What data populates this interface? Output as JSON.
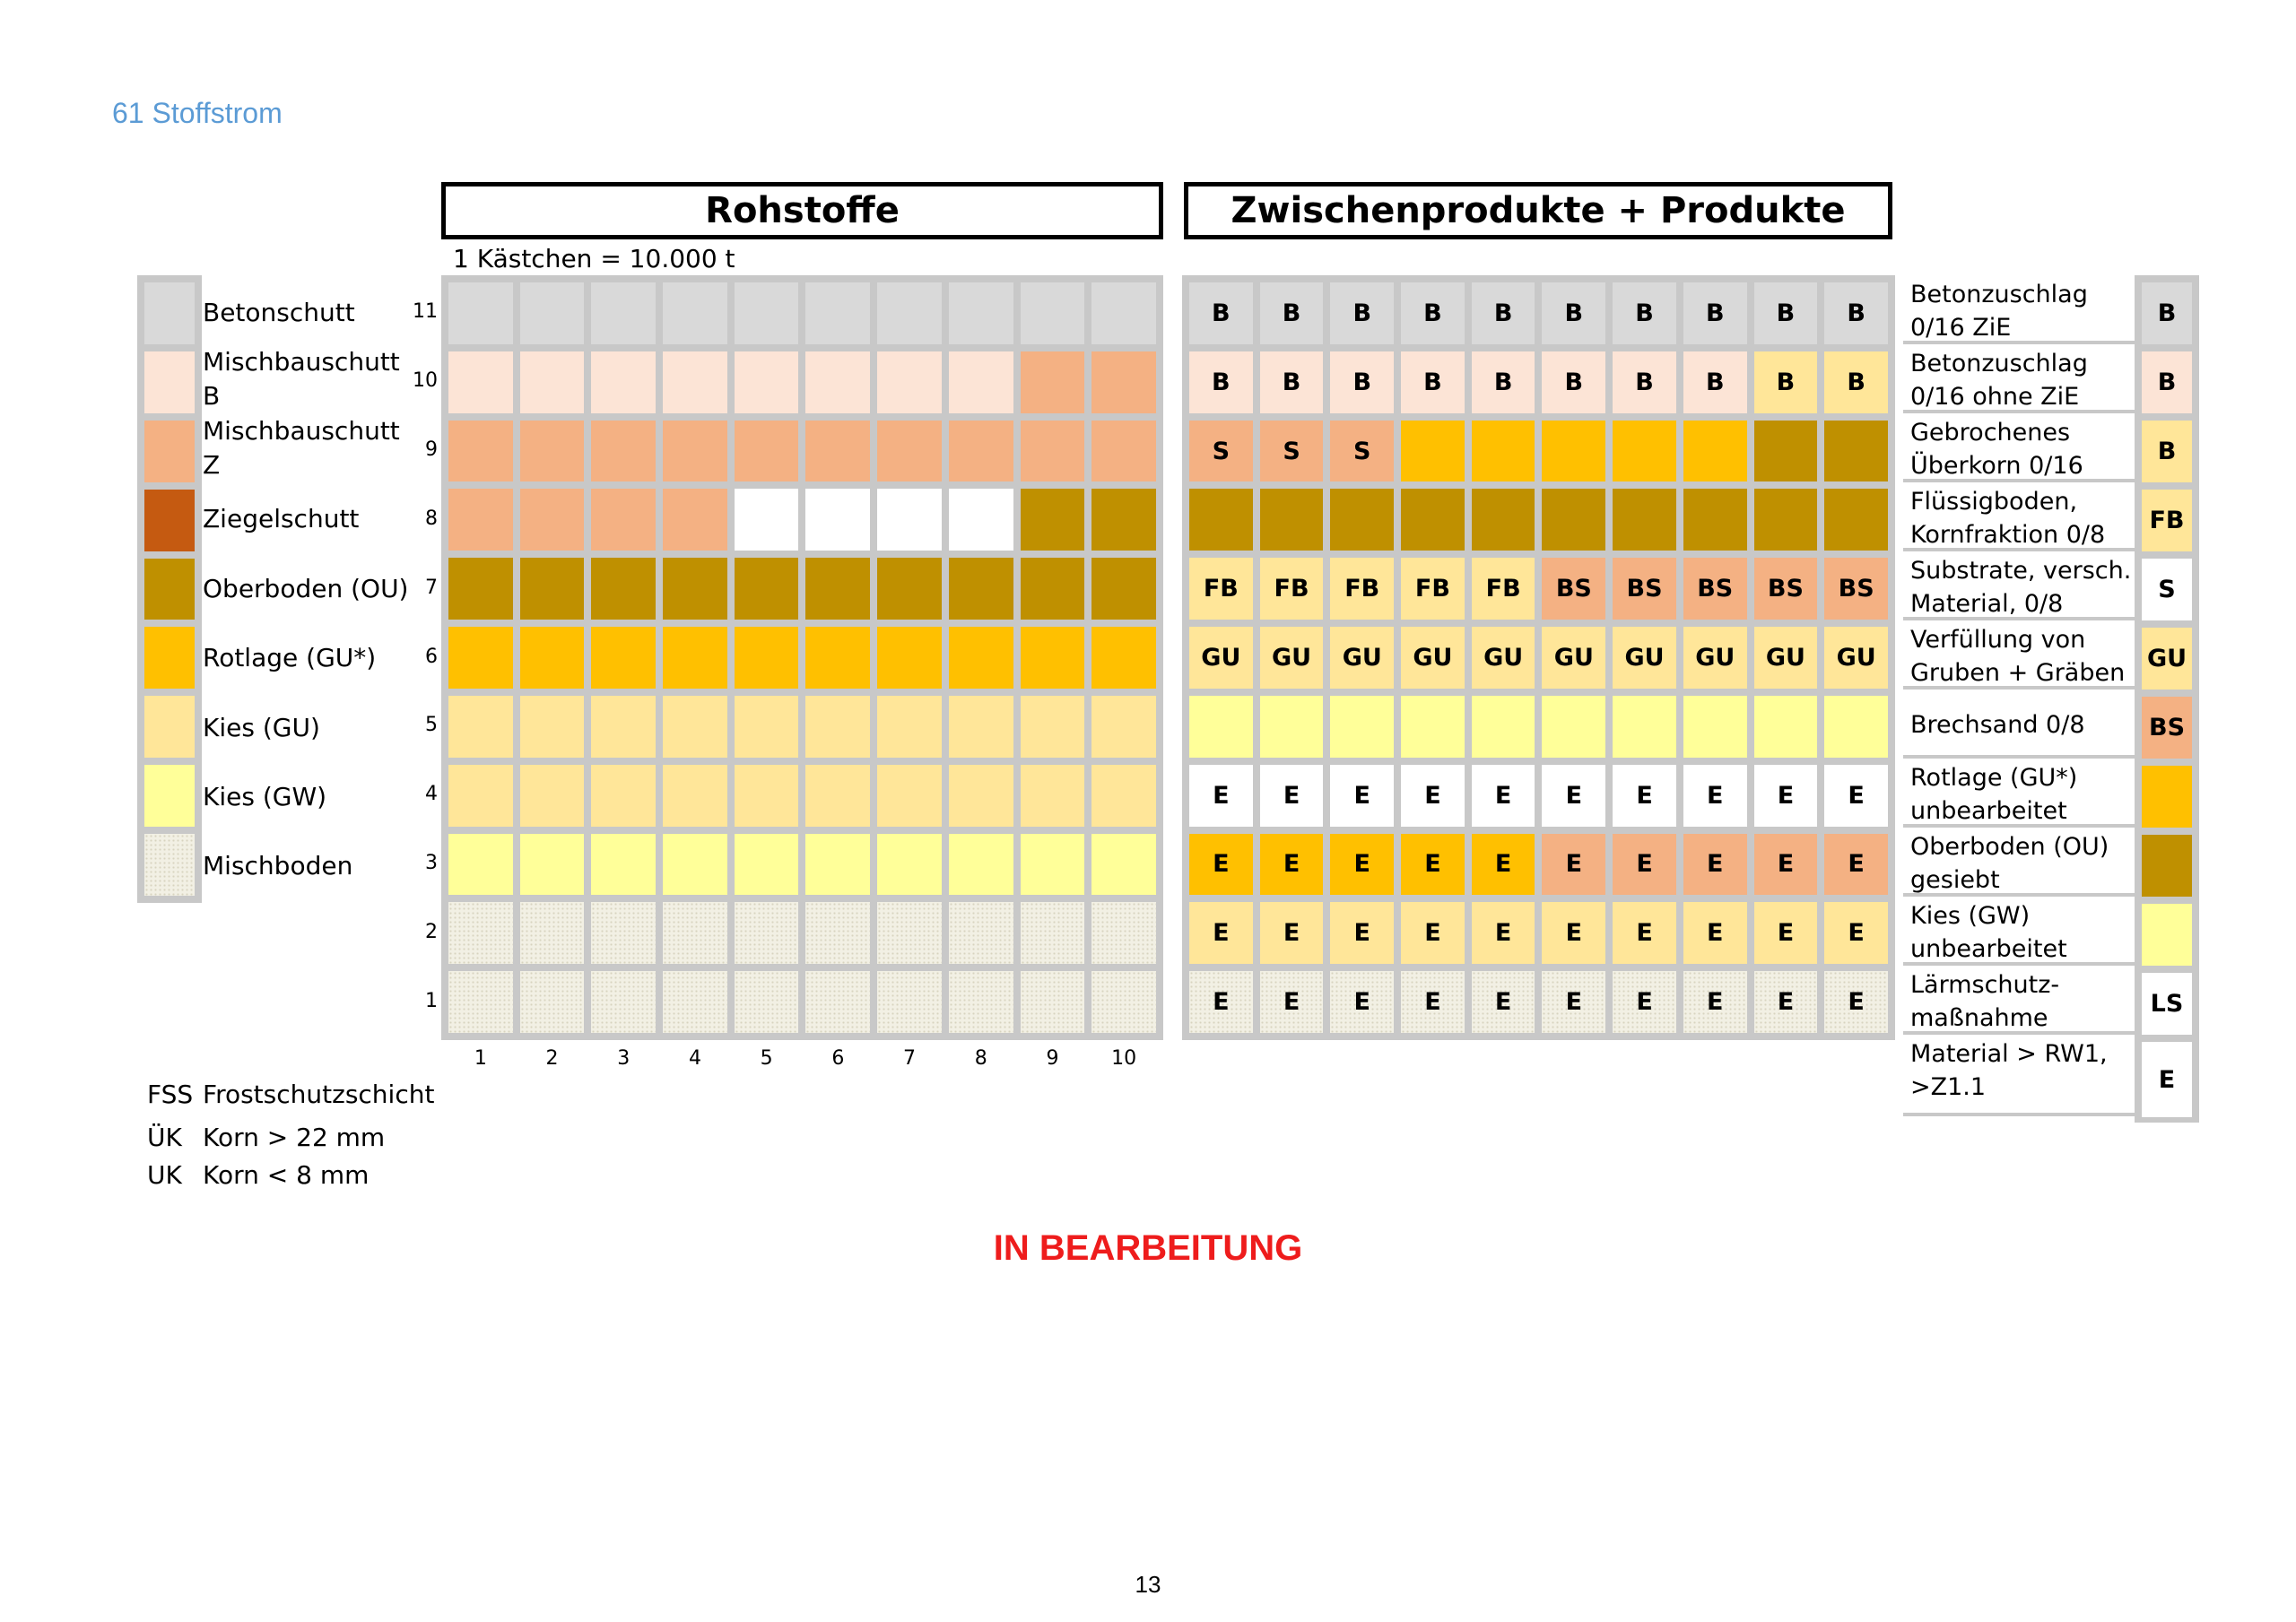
{
  "section_title": "61 Stoffstrom",
  "headers": {
    "raw": "Rohstoffe",
    "products": "Zwischenprodukte + Produkte"
  },
  "scale_note": "1 Kästchen = 10.000 t",
  "colors": {
    "beton": "#d9d9d9",
    "misch_b": "#fce4d6",
    "misch_z": "#f4b183",
    "ziegel": "#c55a11",
    "oberboden": "#bf9000",
    "rotlage": "#ffc000",
    "kies_gu": "#ffe699",
    "kies_gw": "#ffff99",
    "mischboden": "#f2f0e4",
    "white": "#ffffff"
  },
  "legend": [
    {
      "label": "Betonschutt",
      "color": "beton"
    },
    {
      "label": "Mischbauschutt\nB",
      "color": "misch_b"
    },
    {
      "label": "Mischbauschutt\nZ",
      "color": "misch_z"
    },
    {
      "label": "Ziegelschutt",
      "color": "ziegel"
    },
    {
      "label": "Oberboden (OU)",
      "color": "oberboden"
    },
    {
      "label": "Rotlage (GU*)",
      "color": "rotlage"
    },
    {
      "label": "Kies (GU)",
      "color": "kies_gu"
    },
    {
      "label": "Kies (GW)",
      "color": "kies_gw"
    },
    {
      "label": "Mischboden",
      "color": "mischboden"
    }
  ],
  "row_numbers": [
    "11",
    "10",
    "9",
    "8",
    "7",
    "6",
    "5",
    "4",
    "3",
    "2",
    "1"
  ],
  "col_numbers": [
    "1",
    "2",
    "3",
    "4",
    "5",
    "6",
    "7",
    "8",
    "9",
    "10"
  ],
  "raw_grid": [
    [
      "beton",
      "beton",
      "beton",
      "beton",
      "beton",
      "beton",
      "beton",
      "beton",
      "beton",
      "beton"
    ],
    [
      "misch_b",
      "misch_b",
      "misch_b",
      "misch_b",
      "misch_b",
      "misch_b",
      "misch_b",
      "misch_b",
      "misch_z",
      "misch_z"
    ],
    [
      "misch_z",
      "misch_z",
      "misch_z",
      "misch_z",
      "misch_z",
      "misch_z",
      "misch_z",
      "misch_z",
      "misch_z",
      "misch_z"
    ],
    [
      "misch_z",
      "misch_z",
      "misch_z",
      "misch_z",
      "white",
      "white",
      "white",
      "white",
      "oberboden",
      "oberboden"
    ],
    [
      "oberboden",
      "oberboden",
      "oberboden",
      "oberboden",
      "oberboden",
      "oberboden",
      "oberboden",
      "oberboden",
      "oberboden",
      "oberboden"
    ],
    [
      "rotlage",
      "rotlage",
      "rotlage",
      "rotlage",
      "rotlage",
      "rotlage",
      "rotlage",
      "rotlage",
      "rotlage",
      "rotlage"
    ],
    [
      "kies_gu",
      "kies_gu",
      "kies_gu",
      "kies_gu",
      "kies_gu",
      "kies_gu",
      "kies_gu",
      "kies_gu",
      "kies_gu",
      "kies_gu"
    ],
    [
      "kies_gu",
      "kies_gu",
      "kies_gu",
      "kies_gu",
      "kies_gu",
      "kies_gu",
      "kies_gu",
      "kies_gu",
      "kies_gu",
      "kies_gu"
    ],
    [
      "kies_gw",
      "kies_gw",
      "kies_gw",
      "kies_gw",
      "kies_gw",
      "kies_gw",
      "kies_gw",
      "kies_gw",
      "kies_gw",
      "kies_gw"
    ],
    [
      "mischboden",
      "mischboden",
      "mischboden",
      "mischboden",
      "mischboden",
      "mischboden",
      "mischboden",
      "mischboden",
      "mischboden",
      "mischboden"
    ],
    [
      "mischboden",
      "mischboden",
      "mischboden",
      "mischboden",
      "mischboden",
      "mischboden",
      "mischboden",
      "mischboden",
      "mischboden",
      "mischboden"
    ]
  ],
  "product_grid": [
    [
      [
        "beton",
        "B"
      ],
      [
        "beton",
        "B"
      ],
      [
        "beton",
        "B"
      ],
      [
        "beton",
        "B"
      ],
      [
        "beton",
        "B"
      ],
      [
        "beton",
        "B"
      ],
      [
        "beton",
        "B"
      ],
      [
        "beton",
        "B"
      ],
      [
        "beton",
        "B"
      ],
      [
        "beton",
        "B"
      ]
    ],
    [
      [
        "misch_b",
        "B"
      ],
      [
        "misch_b",
        "B"
      ],
      [
        "misch_b",
        "B"
      ],
      [
        "misch_b",
        "B"
      ],
      [
        "misch_b",
        "B"
      ],
      [
        "misch_b",
        "B"
      ],
      [
        "misch_b",
        "B"
      ],
      [
        "misch_b",
        "B"
      ],
      [
        "kies_gu",
        "B"
      ],
      [
        "kies_gu",
        "B"
      ]
    ],
    [
      [
        "misch_z",
        "S"
      ],
      [
        "misch_z",
        "S"
      ],
      [
        "misch_z",
        "S"
      ],
      [
        "rotlage",
        ""
      ],
      [
        "rotlage",
        ""
      ],
      [
        "rotlage",
        ""
      ],
      [
        "rotlage",
        ""
      ],
      [
        "rotlage",
        ""
      ],
      [
        "oberboden",
        ""
      ],
      [
        "oberboden",
        ""
      ]
    ],
    [
      [
        "oberboden",
        ""
      ],
      [
        "oberboden",
        ""
      ],
      [
        "oberboden",
        ""
      ],
      [
        "oberboden",
        ""
      ],
      [
        "oberboden",
        ""
      ],
      [
        "oberboden",
        ""
      ],
      [
        "oberboden",
        ""
      ],
      [
        "oberboden",
        ""
      ],
      [
        "oberboden",
        ""
      ],
      [
        "oberboden",
        ""
      ]
    ],
    [
      [
        "kies_gu",
        "FB"
      ],
      [
        "kies_gu",
        "FB"
      ],
      [
        "kies_gu",
        "FB"
      ],
      [
        "kies_gu",
        "FB"
      ],
      [
        "kies_gu",
        "FB"
      ],
      [
        "misch_z",
        "BS"
      ],
      [
        "misch_z",
        "BS"
      ],
      [
        "misch_z",
        "BS"
      ],
      [
        "misch_z",
        "BS"
      ],
      [
        "misch_z",
        "BS"
      ]
    ],
    [
      [
        "kies_gu",
        "GU"
      ],
      [
        "kies_gu",
        "GU"
      ],
      [
        "kies_gu",
        "GU"
      ],
      [
        "kies_gu",
        "GU"
      ],
      [
        "kies_gu",
        "GU"
      ],
      [
        "kies_gu",
        "GU"
      ],
      [
        "kies_gu",
        "GU"
      ],
      [
        "kies_gu",
        "GU"
      ],
      [
        "kies_gu",
        "GU"
      ],
      [
        "kies_gu",
        "GU"
      ]
    ],
    [
      [
        "kies_gw",
        ""
      ],
      [
        "kies_gw",
        ""
      ],
      [
        "kies_gw",
        ""
      ],
      [
        "kies_gw",
        ""
      ],
      [
        "kies_gw",
        ""
      ],
      [
        "kies_gw",
        ""
      ],
      [
        "kies_gw",
        ""
      ],
      [
        "kies_gw",
        ""
      ],
      [
        "kies_gw",
        ""
      ],
      [
        "kies_gw",
        ""
      ]
    ],
    [
      [
        "white",
        "E"
      ],
      [
        "white",
        "E"
      ],
      [
        "white",
        "E"
      ],
      [
        "white",
        "E"
      ],
      [
        "white",
        "E"
      ],
      [
        "white",
        "E"
      ],
      [
        "white",
        "E"
      ],
      [
        "white",
        "E"
      ],
      [
        "white",
        "E"
      ],
      [
        "white",
        "E"
      ]
    ],
    [
      [
        "rotlage",
        "E"
      ],
      [
        "rotlage",
        "E"
      ],
      [
        "rotlage",
        "E"
      ],
      [
        "rotlage",
        "E"
      ],
      [
        "rotlage",
        "E"
      ],
      [
        "misch_z",
        "E"
      ],
      [
        "misch_z",
        "E"
      ],
      [
        "misch_z",
        "E"
      ],
      [
        "misch_z",
        "E"
      ],
      [
        "misch_z",
        "E"
      ]
    ],
    [
      [
        "kies_gu",
        "E"
      ],
      [
        "kies_gu",
        "E"
      ],
      [
        "kies_gu",
        "E"
      ],
      [
        "kies_gu",
        "E"
      ],
      [
        "kies_gu",
        "E"
      ],
      [
        "kies_gu",
        "E"
      ],
      [
        "kies_gu",
        "E"
      ],
      [
        "kies_gu",
        "E"
      ],
      [
        "kies_gu",
        "E"
      ],
      [
        "kies_gu",
        "E"
      ]
    ],
    [
      [
        "mischboden",
        "E"
      ],
      [
        "mischboden",
        "E"
      ],
      [
        "mischboden",
        "E"
      ],
      [
        "mischboden",
        "E"
      ],
      [
        "mischboden",
        "E"
      ],
      [
        "mischboden",
        "E"
      ],
      [
        "mischboden",
        "E"
      ],
      [
        "mischboden",
        "E"
      ],
      [
        "mischboden",
        "E"
      ],
      [
        "mischboden",
        "E"
      ]
    ]
  ],
  "product_legend": [
    {
      "label": "Betonzuschlag\n0/16 ZiE",
      "symbol": "B",
      "color": "beton"
    },
    {
      "label": "Betonzuschlag\n0/16 ohne ZiE",
      "symbol": "B",
      "color": "misch_b"
    },
    {
      "label": "Gebrochenes\nÜberkorn 0/16",
      "symbol": "B",
      "color": "kies_gu"
    },
    {
      "label": "Flüssigboden,\nKornfraktion 0/8",
      "symbol": "FB",
      "color": "kies_gu"
    },
    {
      "label": "Substrate, versch.\nMaterial, 0/8",
      "symbol": "S",
      "color": "white"
    },
    {
      "label": "Verfüllung von\nGruben + Gräben",
      "symbol": "GU",
      "color": "kies_gu"
    },
    {
      "label": "Brechsand 0/8",
      "symbol": "BS",
      "color": "misch_z"
    },
    {
      "label": "Rotlage (GU*)\nunbearbeitet",
      "symbol": "",
      "color": "rotlage"
    },
    {
      "label": "Oberboden (OU)\ngesiebt",
      "symbol": "",
      "color": "oberboden"
    },
    {
      "label": "Kies (GW)\nunbearbeitet",
      "symbol": "",
      "color": "kies_gw"
    },
    {
      "label": "Lärmschutz-\nmaßnahme",
      "symbol": "LS",
      "color": "white"
    },
    {
      "label": "Material > RW1,\n>Z1.1",
      "symbol": "E",
      "color": "white"
    }
  ],
  "abbreviations": [
    {
      "abbr": "FSS",
      "meaning": "Frostschutzschicht"
    },
    {
      "abbr": "ÜK",
      "meaning": "Korn > 22 mm"
    },
    {
      "abbr": "UK",
      "meaning": "Korn < 8 mm"
    }
  ],
  "status": "IN BEARBEITUNG",
  "page_number": "13"
}
